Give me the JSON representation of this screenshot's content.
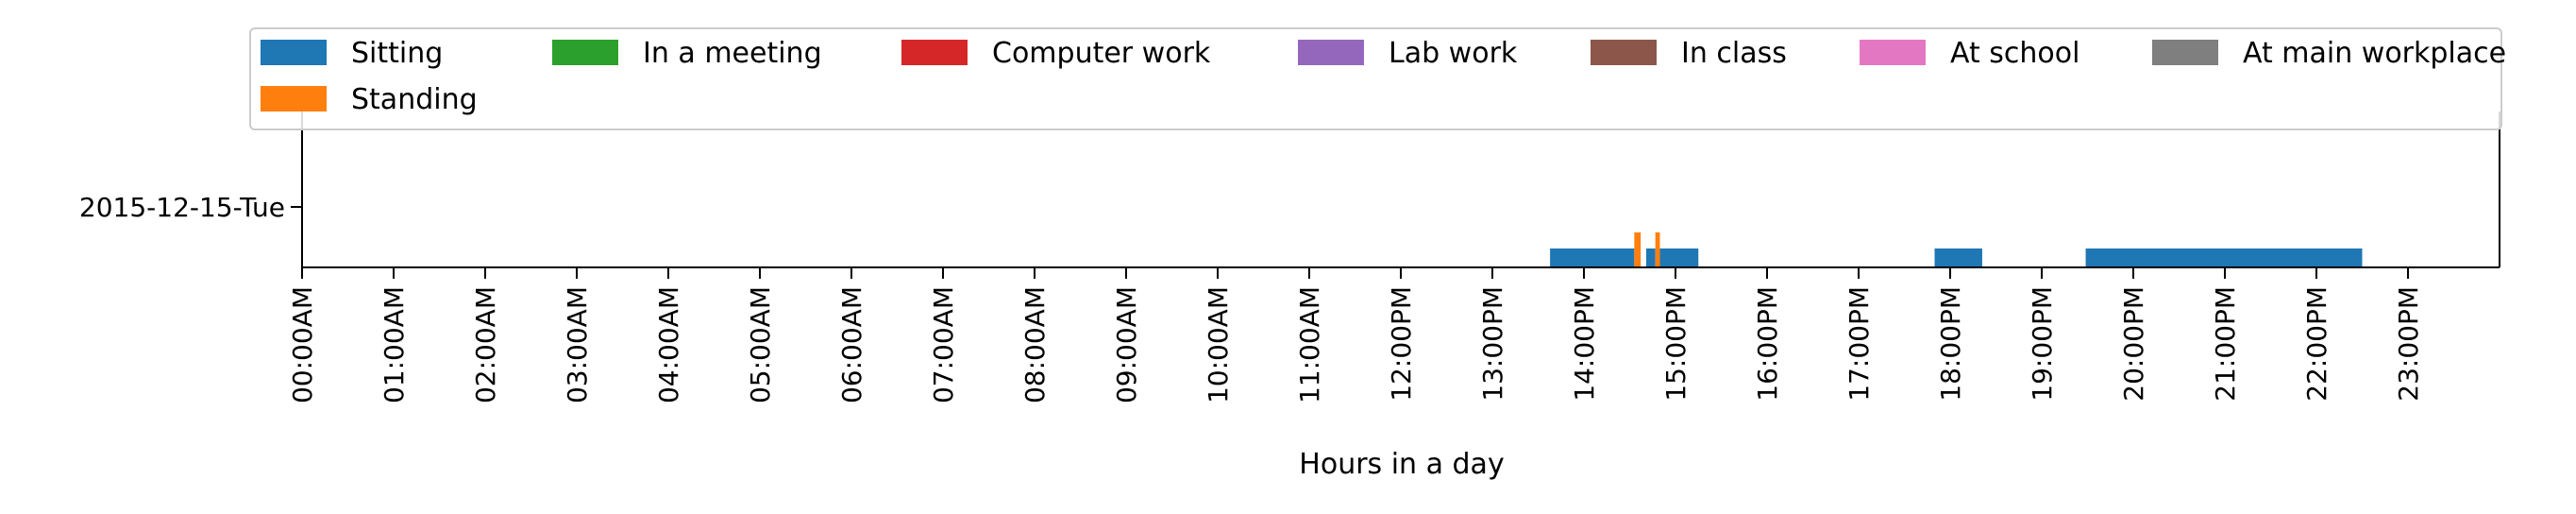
{
  "chart_data": {
    "type": "timeline",
    "xlabel": "Hours in a day",
    "xlim": [
      0,
      24
    ],
    "x_ticks": [
      "00:00AM",
      "01:00AM",
      "02:00AM",
      "03:00AM",
      "04:00AM",
      "05:00AM",
      "06:00AM",
      "07:00AM",
      "08:00AM",
      "09:00AM",
      "10:00AM",
      "11:00AM",
      "12:00PM",
      "13:00PM",
      "14:00PM",
      "15:00PM",
      "16:00PM",
      "17:00PM",
      "18:00PM",
      "19:00PM",
      "20:00PM",
      "21:00PM",
      "22:00PM",
      "23:00PM"
    ],
    "y_ticks": [
      "2015-12-15-Tue"
    ],
    "legend_position": "top",
    "legend": [
      {
        "name": "Sitting",
        "color": "#1f77b4"
      },
      {
        "name": "In a meeting",
        "color": "#2ca02c"
      },
      {
        "name": "Computer work",
        "color": "#d62728"
      },
      {
        "name": "Lab work",
        "color": "#9467bd"
      },
      {
        "name": "In class",
        "color": "#8c564b"
      },
      {
        "name": "At school",
        "color": "#e377c2"
      },
      {
        "name": "At main workplace",
        "color": "#7f7f7f"
      },
      {
        "name": "Standing",
        "color": "#ff7f0e"
      }
    ],
    "series": [
      {
        "name": "Sitting",
        "color": "#1f77b4",
        "intervals": [
          [
            13.63,
            14.55
          ],
          [
            14.68,
            14.78
          ],
          [
            14.83,
            15.25
          ],
          [
            17.83,
            18.35
          ],
          [
            19.48,
            22.5
          ]
        ]
      },
      {
        "name": "Standing",
        "color": "#ff7f0e",
        "intervals": [
          [
            14.55,
            14.62
          ],
          [
            14.78,
            14.83
          ]
        ]
      }
    ]
  }
}
